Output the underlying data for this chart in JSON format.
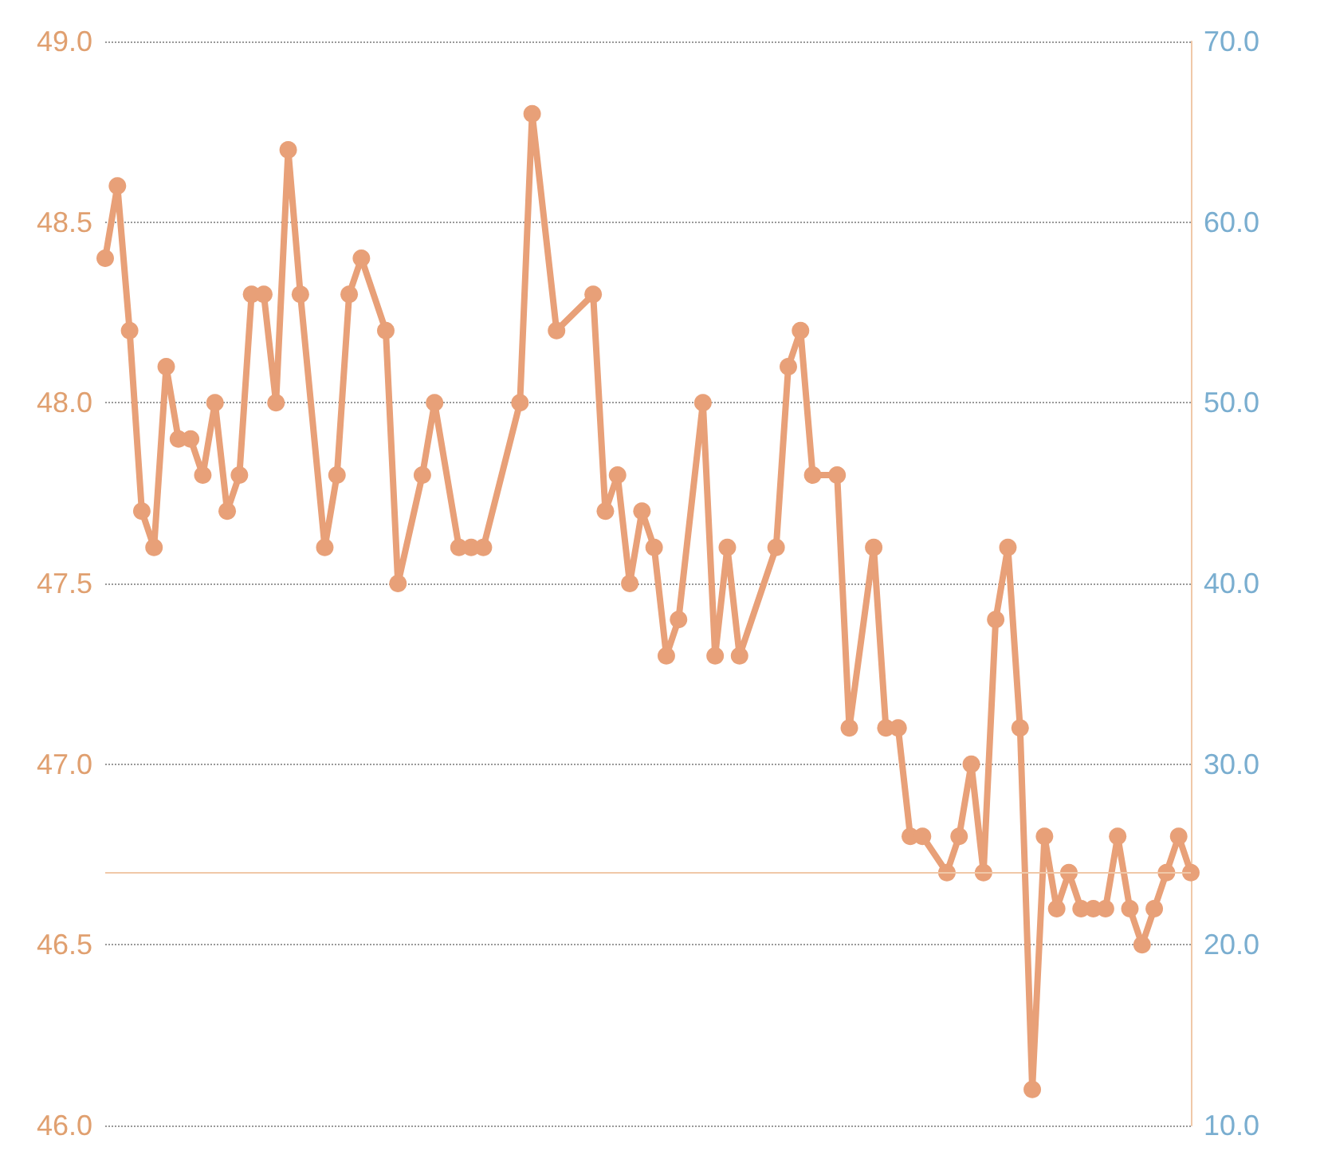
{
  "chart_data": {
    "type": "line",
    "categories": [
      null,
      null,
      null,
      null,
      null,
      null,
      null,
      null,
      null,
      null,
      null,
      null,
      null,
      null,
      null,
      null,
      null,
      null,
      null,
      null,
      null,
      null,
      null,
      null,
      null,
      null,
      null,
      null,
      null,
      null,
      null,
      null,
      null,
      null,
      null,
      null,
      null,
      null,
      null,
      null,
      null,
      null,
      null,
      null,
      null,
      null,
      null,
      null,
      null,
      null,
      null,
      null,
      null,
      null,
      null,
      null,
      null,
      null,
      null,
      null,
      null,
      null,
      null,
      null,
      null,
      null,
      null,
      null,
      null,
      null,
      null,
      null,
      null,
      null,
      null,
      null,
      null,
      null,
      null,
      null,
      null,
      null,
      null,
      null,
      null,
      null,
      null,
      null,
      null,
      null
    ],
    "series": [
      {
        "color": "#e8a078",
        "values": [
          48.4,
          48.6,
          48.2,
          47.7,
          47.6,
          48.1,
          47.9,
          47.9,
          47.8,
          48.0,
          47.7,
          47.8,
          48.3,
          48.3,
          48.0,
          48.7,
          48.3,
          null,
          47.6,
          47.8,
          48.3,
          48.4,
          null,
          48.2,
          47.5,
          null,
          47.8,
          48.0,
          null,
          47.6,
          47.6,
          47.6,
          null,
          null,
          48.0,
          48.8,
          null,
          48.2,
          null,
          null,
          48.3,
          47.7,
          47.8,
          47.5,
          47.7,
          47.6,
          47.3,
          47.4,
          null,
          48.0,
          47.3,
          47.6,
          47.3,
          null,
          null,
          47.6,
          48.1,
          48.2,
          47.8,
          null,
          47.8,
          47.1,
          null,
          47.6,
          47.1,
          47.1,
          46.8,
          46.8,
          null,
          46.7,
          46.8,
          47.0,
          46.7,
          47.4,
          47.6,
          47.1,
          46.1,
          46.8,
          46.6,
          46.7,
          46.6,
          46.6,
          46.6,
          46.8,
          46.6,
          46.5,
          46.6,
          46.7,
          46.8,
          46.7
        ]
      }
    ],
    "ylim": [
      46.0,
      49.0
    ],
    "yticks": [
      {
        "value": 46,
        "label": "46.0"
      },
      {
        "value": 46.5,
        "label": "46.5"
      },
      {
        "value": 47,
        "label": "47.0"
      },
      {
        "value": 47.5,
        "label": "47.5"
      },
      {
        "value": 48,
        "label": "48.0"
      },
      {
        "value": 48.5,
        "label": "48.5"
      },
      {
        "value": 49,
        "label": "49.0"
      }
    ],
    "y2lim": [
      10.0,
      70.0
    ],
    "y2ticks": [
      {
        "value": 10,
        "label": "10.0"
      },
      {
        "value": 20,
        "label": "20.0"
      },
      {
        "value": 30,
        "label": "30.0"
      },
      {
        "value": 40,
        "label": "40.0"
      },
      {
        "value": 50,
        "label": "50.0"
      },
      {
        "value": 60,
        "label": "60.0"
      },
      {
        "value": 70,
        "label": "70.0"
      }
    ],
    "ref_lines": [
      {
        "axis": "y",
        "value": 46.7,
        "color": "#f0c8a8",
        "line_style": "solid"
      }
    ],
    "grid": "y",
    "marker": "circle",
    "line_style": "solid"
  }
}
